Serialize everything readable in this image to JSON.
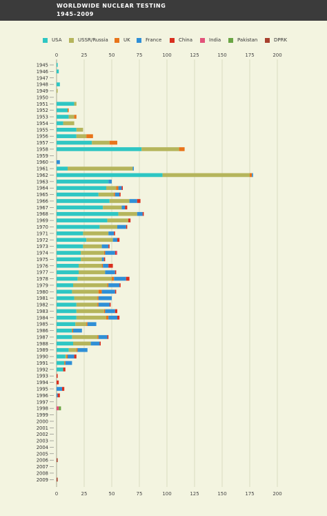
{
  "header": {
    "title": "WORLDWIDE NUCLEAR TESTING",
    "subtitle": "1945–2009"
  },
  "legend": {
    "items": [
      {
        "label": "USA",
        "color": "#2ec6c3"
      },
      {
        "label": "USSR/Russia",
        "color": "#b5b55c"
      },
      {
        "label": "UK",
        "color": "#e8741a"
      },
      {
        "label": "France",
        "color": "#2f8fd6"
      },
      {
        "label": "China",
        "color": "#d92f1f"
      },
      {
        "label": "India",
        "color": "#e2527a"
      },
      {
        "label": "Pakistan",
        "color": "#69a544"
      },
      {
        "label": "DPRK",
        "color": "#a8402e"
      }
    ]
  },
  "chart_data": {
    "type": "bar",
    "orientation": "horizontal",
    "stacked": true,
    "title": "WORLDWIDE NUCLEAR TESTING",
    "subtitle": "1945–2009",
    "xlim": [
      0,
      200
    ],
    "xticks": [
      "0",
      "25",
      "50",
      "75",
      "100",
      "125",
      "150",
      "175",
      "200"
    ],
    "grid": true,
    "legend_position": "top",
    "categories": [
      "1945",
      "1946",
      "1947",
      "1948",
      "1949",
      "1950",
      "1951",
      "1952",
      "1953",
      "1954",
      "1955",
      "1956",
      "1957",
      "1958",
      "1959",
      "1960",
      "1961",
      "1962",
      "1963",
      "1964",
      "1965",
      "1966",
      "1967",
      "1968",
      "1969",
      "1970",
      "1971",
      "1972",
      "1973",
      "1974",
      "1975",
      "1976",
      "1977",
      "1978",
      "1979",
      "1980",
      "1981",
      "1982",
      "1983",
      "1984",
      "1985",
      "1986",
      "1987",
      "1988",
      "1989",
      "1990",
      "1991",
      "1992",
      "1993",
      "1994",
      "1995",
      "1996",
      "1997",
      "1998",
      "1999",
      "2000",
      "2001",
      "2002",
      "2003",
      "2004",
      "2005",
      "2006",
      "2007",
      "2008",
      "2009"
    ],
    "series": [
      {
        "name": "USA",
        "color": "#2ec6c3",
        "values": [
          1,
          2,
          0,
          3,
          0,
          0,
          16,
          10,
          11,
          6,
          18,
          18,
          32,
          77,
          0,
          0,
          10,
          96,
          47,
          45,
          38,
          48,
          42,
          56,
          46,
          39,
          24,
          27,
          24,
          22,
          22,
          20,
          20,
          19,
          15,
          14,
          16,
          18,
          18,
          18,
          17,
          14,
          14,
          15,
          11,
          8,
          7,
          6,
          0,
          0,
          0,
          0,
          0,
          0,
          0,
          0,
          0,
          0,
          0,
          0,
          0,
          0,
          0,
          0,
          0
        ]
      },
      {
        "name": "USSR/Russia",
        "color": "#b5b55c",
        "values": [
          0,
          0,
          0,
          0,
          1,
          0,
          2,
          0,
          5,
          10,
          6,
          9,
          16,
          34,
          0,
          0,
          59,
          79,
          0,
          9,
          14,
          18,
          17,
          17,
          19,
          16,
          23,
          24,
          17,
          21,
          19,
          21,
          24,
          31,
          31,
          24,
          21,
          19,
          25,
          27,
          10,
          0,
          23,
          16,
          7,
          1,
          0,
          0,
          0,
          0,
          0,
          0,
          0,
          0,
          0,
          0,
          0,
          0,
          0,
          0,
          0,
          0,
          0,
          0,
          0
        ]
      },
      {
        "name": "UK",
        "color": "#e8741a",
        "values": [
          0,
          0,
          0,
          0,
          0,
          0,
          0,
          1,
          2,
          0,
          0,
          6,
          7,
          5,
          0,
          0,
          0,
          2,
          0,
          2,
          1,
          0,
          0,
          0,
          0,
          0,
          0,
          0,
          0,
          1,
          0,
          1,
          0,
          2,
          1,
          3,
          1,
          1,
          1,
          2,
          1,
          1,
          1,
          0,
          1,
          1,
          1,
          0,
          0,
          0,
          0,
          0,
          0,
          0,
          0,
          0,
          0,
          0,
          0,
          0,
          0,
          0,
          0,
          0,
          0
        ]
      },
      {
        "name": "France",
        "color": "#2f8fd6",
        "values": [
          0,
          0,
          0,
          0,
          0,
          0,
          0,
          0,
          0,
          0,
          0,
          0,
          0,
          0,
          0,
          3,
          1,
          1,
          3,
          3,
          4,
          7,
          3,
          5,
          0,
          8,
          5,
          4,
          6,
          9,
          2,
          5,
          9,
          11,
          10,
          12,
          12,
          10,
          9,
          8,
          8,
          8,
          8,
          8,
          9,
          6,
          6,
          0,
          0,
          0,
          5,
          1,
          0,
          0,
          0,
          0,
          0,
          0,
          0,
          0,
          0,
          0,
          0,
          0,
          0
        ]
      },
      {
        "name": "China",
        "color": "#d92f1f",
        "values": [
          0,
          0,
          0,
          0,
          0,
          0,
          0,
          0,
          0,
          0,
          0,
          0,
          0,
          0,
          0,
          0,
          0,
          0,
          0,
          1,
          1,
          3,
          2,
          1,
          2,
          1,
          1,
          2,
          1,
          1,
          1,
          4,
          1,
          3,
          1,
          1,
          0,
          1,
          2,
          2,
          0,
          0,
          1,
          1,
          0,
          2,
          0,
          2,
          1,
          2,
          2,
          2,
          0,
          0,
          0,
          0,
          0,
          0,
          0,
          0,
          0,
          0,
          0,
          0,
          0
        ]
      },
      {
        "name": "India",
        "color": "#e2527a",
        "values": [
          0,
          0,
          0,
          0,
          0,
          0,
          0,
          0,
          0,
          0,
          0,
          0,
          0,
          0,
          0,
          0,
          0,
          0,
          0,
          0,
          0,
          0,
          0,
          0,
          0,
          0,
          0,
          0,
          0,
          1,
          0,
          0,
          0,
          0,
          0,
          0,
          0,
          0,
          0,
          0,
          0,
          0,
          0,
          0,
          0,
          0,
          0,
          0,
          0,
          0,
          0,
          0,
          0,
          2,
          0,
          0,
          0,
          0,
          0,
          0,
          0,
          0,
          0,
          0,
          0
        ]
      },
      {
        "name": "Pakistan",
        "color": "#69a544",
        "values": [
          0,
          0,
          0,
          0,
          0,
          0,
          0,
          0,
          0,
          0,
          0,
          0,
          0,
          0,
          0,
          0,
          0,
          0,
          0,
          0,
          0,
          0,
          0,
          0,
          0,
          0,
          0,
          0,
          0,
          0,
          0,
          0,
          0,
          0,
          0,
          0,
          0,
          0,
          0,
          0,
          0,
          0,
          0,
          0,
          0,
          0,
          0,
          0,
          0,
          0,
          0,
          0,
          0,
          2,
          0,
          0,
          0,
          0,
          0,
          0,
          0,
          0,
          0,
          0,
          0
        ]
      },
      {
        "name": "DPRK",
        "color": "#a8402e",
        "values": [
          0,
          0,
          0,
          0,
          0,
          0,
          0,
          0,
          0,
          0,
          0,
          0,
          0,
          0,
          0,
          0,
          0,
          0,
          0,
          0,
          0,
          0,
          0,
          0,
          0,
          0,
          0,
          0,
          0,
          0,
          0,
          0,
          0,
          0,
          0,
          0,
          0,
          0,
          0,
          0,
          0,
          0,
          0,
          0,
          0,
          0,
          0,
          0,
          0,
          0,
          0,
          0,
          0,
          0,
          0,
          0,
          0,
          0,
          0,
          0,
          0,
          1,
          0,
          0,
          1
        ]
      }
    ]
  }
}
